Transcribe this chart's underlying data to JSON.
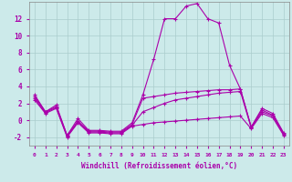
{
  "xlabel": "Windchill (Refroidissement éolien,°C)",
  "background_color": "#cceaea",
  "line_color": "#aa00aa",
  "grid_color": "#aacccc",
  "xlim": [
    -0.5,
    23.5
  ],
  "ylim": [
    -3,
    14
  ],
  "xticks": [
    0,
    1,
    2,
    3,
    4,
    5,
    6,
    7,
    8,
    9,
    10,
    11,
    12,
    13,
    14,
    15,
    16,
    17,
    18,
    19,
    20,
    21,
    22,
    23
  ],
  "yticks": [
    -2,
    0,
    2,
    4,
    6,
    8,
    10,
    12
  ],
  "series": [
    [
      3.0,
      1.0,
      1.8,
      -1.8,
      0.2,
      -1.2,
      -1.2,
      -1.3,
      -1.3,
      -0.3,
      3.0,
      7.2,
      12.0,
      12.0,
      13.5,
      13.8,
      12.0,
      11.5,
      6.5,
      3.7,
      -0.8,
      1.4,
      0.8,
      -1.5
    ],
    [
      2.8,
      1.0,
      1.6,
      -1.8,
      -0.1,
      -1.3,
      -1.3,
      -1.4,
      -1.4,
      -0.5,
      2.6,
      2.8,
      3.0,
      3.2,
      3.3,
      3.4,
      3.5,
      3.6,
      3.6,
      3.7,
      -0.8,
      1.2,
      0.6,
      -1.6
    ],
    [
      2.6,
      0.9,
      1.5,
      -1.9,
      -0.2,
      -1.4,
      -1.4,
      -1.5,
      -1.5,
      -0.6,
      1.0,
      1.5,
      2.0,
      2.4,
      2.6,
      2.8,
      3.0,
      3.2,
      3.3,
      3.4,
      -0.9,
      1.0,
      0.5,
      -1.7
    ],
    [
      2.4,
      0.8,
      1.4,
      -2.0,
      -0.3,
      -1.5,
      -1.5,
      -1.6,
      -1.6,
      -0.7,
      -0.5,
      -0.3,
      -0.2,
      -0.1,
      0.0,
      0.1,
      0.2,
      0.3,
      0.4,
      0.5,
      -1.0,
      0.8,
      0.3,
      -1.8
    ]
  ]
}
